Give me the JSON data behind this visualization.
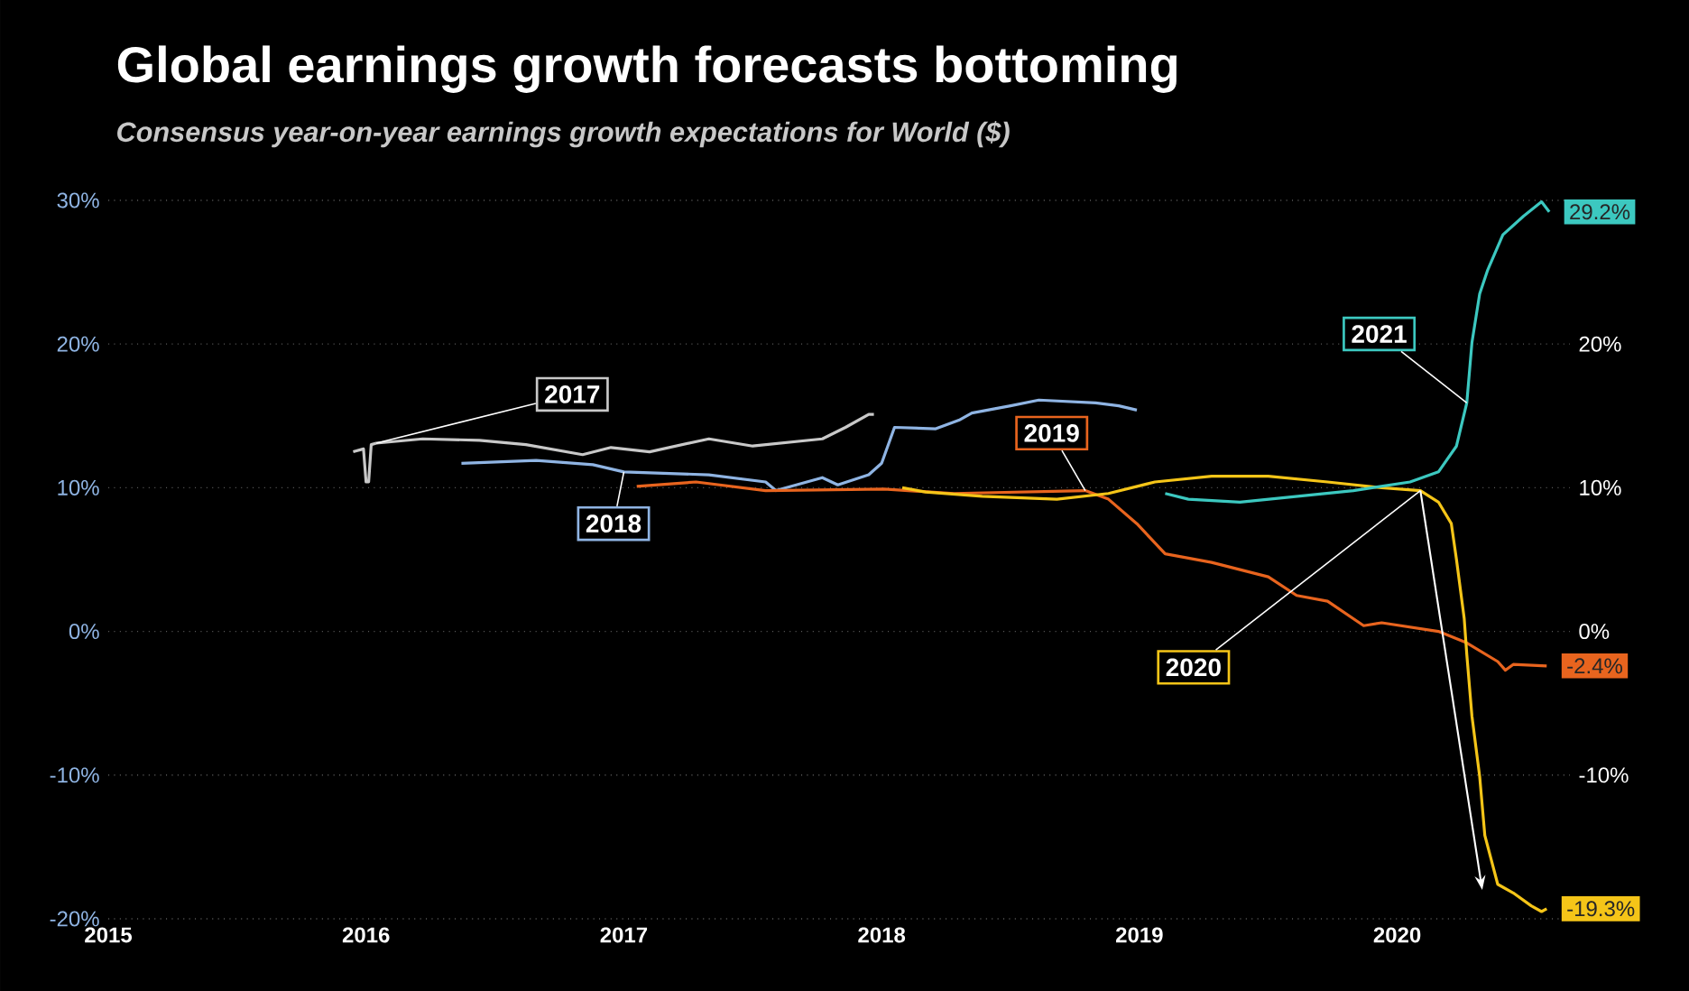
{
  "chart_data": {
    "type": "line",
    "title": "Global earnings growth forecasts bottoming",
    "subtitle": "Consensus year-on-year earnings growth expectations for World ($)",
    "xlim": [
      2015,
      2020.67
    ],
    "xticks": [
      2015,
      2016,
      2017,
      2018,
      2019,
      2020
    ],
    "ylim": [
      -20,
      30
    ],
    "yticks": [
      {
        "value": -20,
        "label": "-20%"
      },
      {
        "value": -10,
        "label": "-10%"
      },
      {
        "value": 0,
        "label": "0%"
      },
      {
        "value": 10,
        "label": "10%"
      },
      {
        "value": 20,
        "label": "20%"
      },
      {
        "value": 30,
        "label": "30%"
      }
    ],
    "y2lim": [
      -20,
      30
    ],
    "y2ticks": [
      {
        "value": -10,
        "label": "-10%"
      },
      {
        "value": 0,
        "label": "0%"
      },
      {
        "value": 10,
        "label": "10%"
      },
      {
        "value": 20,
        "label": "20%"
      }
    ],
    "grid": "y",
    "series": [
      {
        "name": "2017",
        "color": "#c8c8c8",
        "x": [
          2015.95,
          2015.99,
          2016.0,
          2016.01,
          2016.02,
          2016.04,
          2016.22,
          2016.44,
          2016.62,
          2016.84,
          2016.95,
          2017.1,
          2017.33,
          2017.5,
          2017.77,
          2017.86,
          2017.95,
          2017.97
        ],
        "values": [
          12.5,
          12.7,
          10.4,
          10.4,
          13.0,
          13.1,
          13.4,
          13.3,
          13.0,
          12.3,
          12.8,
          12.5,
          13.4,
          12.9,
          13.4,
          14.2,
          15.1,
          15.1
        ]
      },
      {
        "name": "2018",
        "color": "#8fb4e3",
        "x": [
          2016.37,
          2016.66,
          2016.88,
          2017.0,
          2017.33,
          2017.55,
          2017.59,
          2017.77,
          2017.83,
          2017.95,
          2018.0,
          2018.05,
          2018.21,
          2018.3,
          2018.35,
          2018.5,
          2018.61,
          2018.83,
          2018.92,
          2018.99
        ],
        "values": [
          11.7,
          11.9,
          11.6,
          11.1,
          10.9,
          10.4,
          9.8,
          10.7,
          10.2,
          10.9,
          11.7,
          14.2,
          14.1,
          14.7,
          15.2,
          15.7,
          16.1,
          15.9,
          15.7,
          15.4
        ]
      },
      {
        "name": "2019",
        "color": "#e8641e",
        "x": [
          2017.05,
          2017.28,
          2017.55,
          2018.01,
          2018.28,
          2018.79,
          2018.88,
          2018.99,
          2019.1,
          2019.28,
          2019.5,
          2019.61,
          2019.73,
          2019.87,
          2019.94,
          2020.16,
          2020.27,
          2020.39,
          2020.42,
          2020.45,
          2020.58
        ],
        "values": [
          10.1,
          10.4,
          9.8,
          9.9,
          9.6,
          9.8,
          9.2,
          7.5,
          5.4,
          4.8,
          3.8,
          2.5,
          2.1,
          0.4,
          0.6,
          0.0,
          -0.8,
          -2.1,
          -2.7,
          -2.3,
          -2.4
        ],
        "value_labels": [
          null,
          null,
          null,
          null,
          null,
          null,
          null,
          null,
          null,
          null,
          null,
          null,
          null,
          null,
          null,
          null,
          null,
          null,
          null,
          null,
          "-2.4%"
        ]
      },
      {
        "name": "2020",
        "color": "#f5c518",
        "x": [
          2018.08,
          2018.17,
          2018.39,
          2018.68,
          2018.88,
          2019.06,
          2019.28,
          2019.5,
          2019.73,
          2019.94,
          2020.09,
          2020.16,
          2020.21,
          2020.23,
          2020.26,
          2020.27,
          2020.29,
          2020.32,
          2020.34,
          2020.39,
          2020.45,
          2020.52,
          2020.56,
          2020.58
        ],
        "values": [
          10.0,
          9.7,
          9.4,
          9.2,
          9.6,
          10.4,
          10.8,
          10.8,
          10.4,
          10.0,
          9.8,
          9.0,
          7.5,
          5.0,
          0.9,
          -1.6,
          -5.9,
          -10.1,
          -14.2,
          -17.6,
          -18.2,
          -19.1,
          -19.5,
          -19.3
        ],
        "value_labels": [
          null,
          null,
          null,
          null,
          null,
          null,
          null,
          null,
          null,
          null,
          null,
          null,
          null,
          null,
          null,
          null,
          null,
          null,
          null,
          null,
          null,
          null,
          null,
          "-19.3%"
        ]
      },
      {
        "name": "2021",
        "color": "#3cc8c0",
        "x": [
          2019.1,
          2019.19,
          2019.39,
          2019.61,
          2019.83,
          2020.05,
          2020.16,
          2020.23,
          2020.27,
          2020.29,
          2020.32,
          2020.35,
          2020.41,
          2020.49,
          2020.56,
          2020.59
        ],
        "values": [
          9.6,
          9.2,
          9.0,
          9.4,
          9.8,
          10.4,
          11.1,
          12.9,
          15.9,
          20.1,
          23.5,
          25.1,
          27.6,
          28.9,
          29.9,
          29.2
        ],
        "value_labels": [
          null,
          null,
          null,
          null,
          null,
          null,
          null,
          null,
          null,
          null,
          null,
          null,
          null,
          null,
          null,
          "29.2%"
        ]
      }
    ]
  }
}
